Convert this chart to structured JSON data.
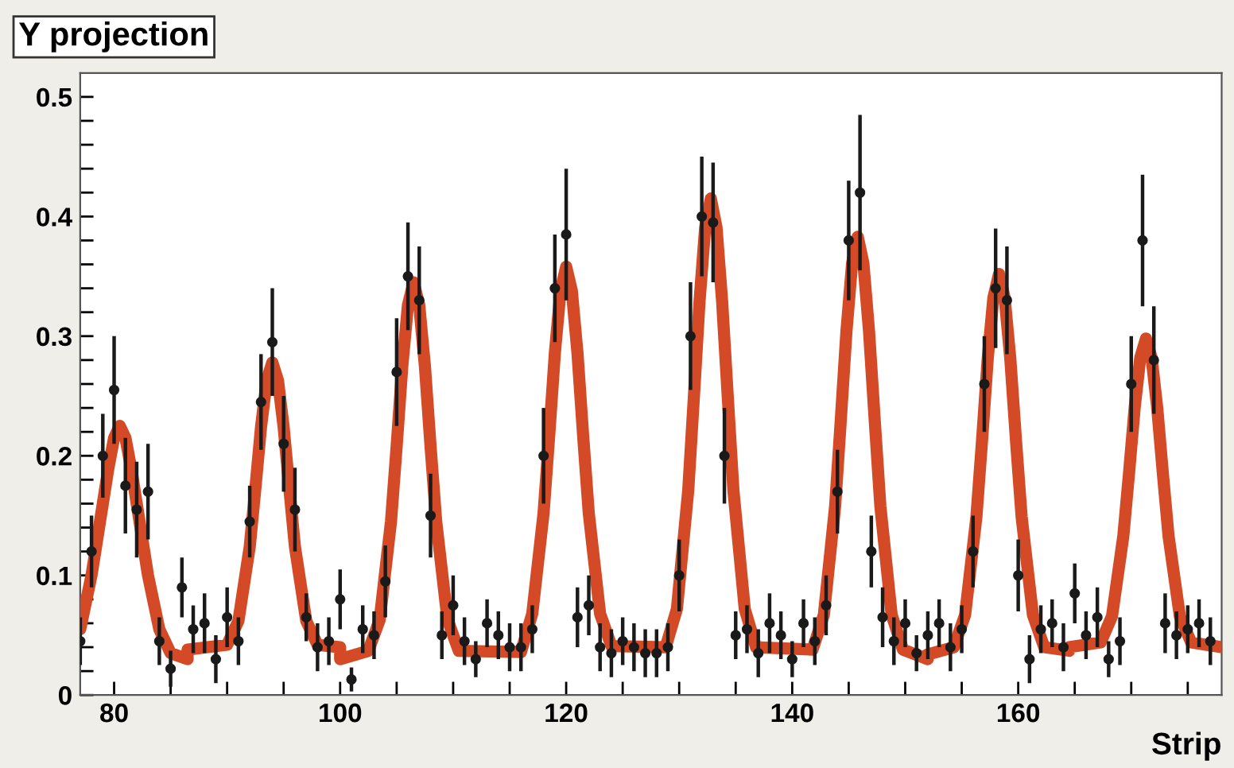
{
  "chart_data": {
    "type": "scatter",
    "title": "Y projection",
    "xlabel": "Strip",
    "xlim": [
      77,
      178
    ],
    "ylim": [
      0,
      0.52
    ],
    "xticks": [
      80,
      {
        "value": 85,
        "label": null
      },
      {
        "value": 90,
        "label": null
      },
      {
        "value": 95,
        "label": null
      },
      100,
      {
        "value": 105,
        "label": null
      },
      {
        "value": 110,
        "label": null
      },
      {
        "value": 115,
        "label": null
      },
      120,
      {
        "value": 125,
        "label": null
      },
      {
        "value": 130,
        "label": null
      },
      {
        "value": 135,
        "label": null
      },
      140,
      {
        "value": 145,
        "label": null
      },
      {
        "value": 150,
        "label": null
      },
      {
        "value": 155,
        "label": null
      },
      160,
      {
        "value": 165,
        "label": null
      },
      {
        "value": 170,
        "label": null
      },
      {
        "value": 175,
        "label": null
      }
    ],
    "yticks": [
      0,
      {
        "value": 0.02,
        "label": null
      },
      {
        "value": 0.04,
        "label": null
      },
      {
        "value": 0.06,
        "label": null
      },
      {
        "value": 0.08,
        "label": null
      },
      0.1,
      {
        "value": 0.12,
        "label": null
      },
      {
        "value": 0.14,
        "label": null
      },
      {
        "value": 0.16,
        "label": null
      },
      {
        "value": 0.18,
        "label": null
      },
      0.2,
      {
        "value": 0.22,
        "label": null
      },
      {
        "value": 0.24,
        "label": null
      },
      {
        "value": 0.26,
        "label": null
      },
      {
        "value": 0.28,
        "label": null
      },
      0.3,
      {
        "value": 0.32,
        "label": null
      },
      {
        "value": 0.34,
        "label": null
      },
      {
        "value": 0.36,
        "label": null
      },
      {
        "value": 0.38,
        "label": null
      },
      0.4,
      {
        "value": 0.42,
        "label": null
      },
      {
        "value": 0.44,
        "label": null
      },
      {
        "value": 0.46,
        "label": null
      },
      {
        "value": 0.48,
        "label": null
      },
      0.5
    ],
    "grid": false,
    "series": [
      {
        "color": "#1a1a1a",
        "marker": "circle",
        "x": [
          77,
          78,
          79,
          80,
          81,
          82,
          83,
          84,
          85,
          86,
          87,
          88,
          89,
          90,
          91,
          92,
          93,
          94,
          95,
          96,
          97,
          98,
          99,
          100,
          101,
          102,
          103,
          104,
          105,
          106,
          107,
          108,
          109,
          110,
          111,
          112,
          113,
          114,
          115,
          116,
          117,
          118,
          119,
          120,
          121,
          122,
          123,
          124,
          125,
          126,
          127,
          128,
          129,
          130,
          131,
          132,
          133,
          134,
          135,
          136,
          137,
          138,
          139,
          140,
          141,
          142,
          143,
          144,
          145,
          146,
          147,
          148,
          149,
          150,
          151,
          152,
          153,
          154,
          155,
          156,
          157,
          158,
          159,
          160,
          161,
          162,
          163,
          164,
          165,
          166,
          167,
          168,
          169,
          170,
          171,
          172,
          173,
          174,
          175,
          176,
          177
        ],
        "values": [
          0.045,
          0.12,
          0.2,
          0.255,
          0.175,
          0.155,
          0.17,
          0.045,
          0.022,
          0.09,
          0.055,
          0.06,
          0.03,
          0.065,
          0.045,
          0.145,
          0.245,
          0.295,
          0.21,
          0.155,
          0.065,
          0.04,
          0.045,
          0.08,
          0.013,
          0.055,
          0.05,
          0.095,
          0.27,
          0.35,
          0.33,
          0.15,
          0.05,
          0.075,
          0.045,
          0.03,
          0.06,
          0.05,
          0.04,
          0.04,
          0.055,
          0.2,
          0.34,
          0.385,
          0.065,
          0.075,
          0.04,
          0.035,
          0.045,
          0.04,
          0.035,
          0.035,
          0.04,
          0.1,
          0.3,
          0.4,
          0.395,
          0.2,
          0.05,
          0.055,
          0.035,
          0.06,
          0.05,
          0.03,
          0.06,
          0.045,
          0.075,
          0.17,
          0.38,
          0.42,
          0.12,
          0.065,
          0.045,
          0.06,
          0.035,
          0.05,
          0.06,
          0.04,
          0.055,
          0.12,
          0.26,
          0.34,
          0.33,
          0.1,
          0.03,
          0.055,
          0.06,
          0.04,
          0.085,
          0.05,
          0.065,
          0.03,
          0.045,
          0.26,
          0.38,
          0.28,
          0.06,
          0.05,
          0.055,
          0.06,
          0.045
        ],
        "errors": [
          0.02,
          0.03,
          0.035,
          0.045,
          0.04,
          0.04,
          0.04,
          0.02,
          0.015,
          0.025,
          0.02,
          0.025,
          0.02,
          0.025,
          0.02,
          0.03,
          0.04,
          0.045,
          0.04,
          0.035,
          0.02,
          0.02,
          0.02,
          0.025,
          0.01,
          0.02,
          0.02,
          0.03,
          0.045,
          0.045,
          0.045,
          0.035,
          0.02,
          0.025,
          0.02,
          0.015,
          0.02,
          0.02,
          0.02,
          0.02,
          0.02,
          0.04,
          0.045,
          0.055,
          0.025,
          0.025,
          0.02,
          0.02,
          0.02,
          0.02,
          0.02,
          0.02,
          0.02,
          0.03,
          0.045,
          0.05,
          0.05,
          0.04,
          0.02,
          0.02,
          0.02,
          0.025,
          0.02,
          0.015,
          0.02,
          0.02,
          0.025,
          0.035,
          0.05,
          0.065,
          0.03,
          0.025,
          0.02,
          0.02,
          0.015,
          0.02,
          0.02,
          0.02,
          0.02,
          0.03,
          0.04,
          0.05,
          0.045,
          0.03,
          0.02,
          0.02,
          0.02,
          0.02,
          0.025,
          0.02,
          0.025,
          0.015,
          0.02,
          0.04,
          0.055,
          0.045,
          0.025,
          0.02,
          0.02,
          0.02,
          0.02
        ]
      },
      {
        "type": "line",
        "color": "#d44a26",
        "marker": "none",
        "line_style": "solid",
        "x": [
          77,
          78,
          79,
          79.5,
          80,
          80.5,
          81,
          81.5,
          82,
          83,
          84,
          85,
          86.5,
          86.5,
          90,
          91,
          92,
          92.5,
          93,
          93.5,
          94,
          94.5,
          95,
          95.5,
          96,
          97,
          98,
          100,
          100,
          102.5,
          103.5,
          104.5,
          105,
          105.5,
          106,
          106.5,
          107,
          107.5,
          108,
          108.5,
          109.5,
          110.5,
          116,
          117,
          118,
          118.5,
          119,
          119.5,
          120,
          120.5,
          121,
          121.5,
          122,
          123,
          124,
          128.8,
          129.8,
          130.8,
          131.3,
          131.8,
          132.3,
          132.8,
          133.3,
          133.8,
          134.3,
          134.8,
          135.8,
          136.8,
          141.8,
          142.8,
          143.8,
          144.3,
          144.8,
          145.3,
          145.8,
          146.3,
          146.8,
          147.3,
          147.8,
          148.8,
          149.8,
          152,
          152,
          154.3,
          155.3,
          156.3,
          156.8,
          157.3,
          157.8,
          158.3,
          158.8,
          159.3,
          159.8,
          160.3,
          161.3,
          162.3,
          164.5,
          164.5,
          167.3,
          168.3,
          169.3,
          169.8,
          170.3,
          170.8,
          171.3,
          171.8,
          172.3,
          172.8,
          173.3,
          174.3,
          175.3,
          178
        ],
        "values": [
          0.055,
          0.1,
          0.16,
          0.19,
          0.215,
          0.225,
          0.215,
          0.19,
          0.16,
          0.1,
          0.055,
          0.035,
          0.03,
          0.038,
          0.042,
          0.062,
          0.124,
          0.173,
          0.224,
          0.263,
          0.278,
          0.263,
          0.224,
          0.173,
          0.124,
          0.062,
          0.042,
          0.04,
          0.03,
          0.037,
          0.063,
          0.145,
          0.208,
          0.275,
          0.326,
          0.345,
          0.326,
          0.275,
          0.208,
          0.145,
          0.063,
          0.037,
          0.036,
          0.068,
          0.152,
          0.217,
          0.286,
          0.338,
          0.358,
          0.338,
          0.286,
          0.217,
          0.152,
          0.068,
          0.041,
          0.04,
          0.072,
          0.171,
          0.249,
          0.329,
          0.391,
          0.415,
          0.391,
          0.329,
          0.249,
          0.171,
          0.072,
          0.04,
          0.038,
          0.067,
          0.158,
          0.23,
          0.304,
          0.361,
          0.383,
          0.361,
          0.304,
          0.23,
          0.158,
          0.067,
          0.038,
          0.03,
          0.034,
          0.04,
          0.067,
          0.149,
          0.213,
          0.281,
          0.332,
          0.352,
          0.332,
          0.281,
          0.213,
          0.149,
          0.067,
          0.04,
          0.037,
          0.04,
          0.044,
          0.066,
          0.133,
          0.185,
          0.24,
          0.282,
          0.298,
          0.282,
          0.24,
          0.185,
          0.133,
          0.066,
          0.044,
          0.04
        ]
      }
    ]
  }
}
